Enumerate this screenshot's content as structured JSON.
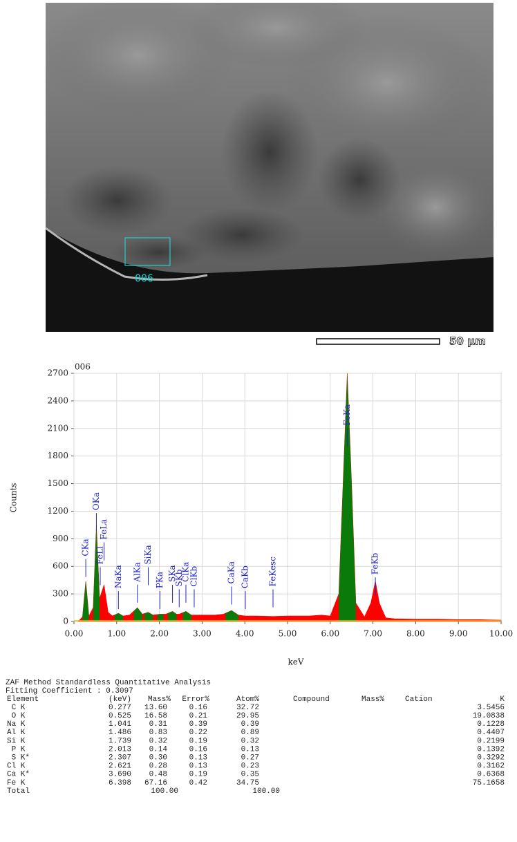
{
  "image": {
    "region_label": "006",
    "scale_label": "50 µm"
  },
  "chart_data": {
    "type": "area",
    "title": "006",
    "x_label": "keV",
    "y_label": "Counts",
    "x": [
      0.1,
      0.2,
      0.277,
      0.35,
      0.45,
      0.525,
      0.6,
      0.705,
      0.8,
      0.9,
      1.041,
      1.15,
      1.3,
      1.486,
      1.6,
      1.739,
      1.85,
      2.013,
      2.15,
      2.307,
      2.4,
      2.464,
      2.621,
      2.75,
      3.0,
      3.3,
      3.5,
      3.69,
      3.85,
      4.012,
      4.3,
      4.66,
      5.0,
      5.5,
      5.8,
      6.0,
      6.2,
      6.3,
      6.398,
      6.5,
      6.6,
      6.8,
      6.95,
      7.057,
      7.15,
      7.3,
      7.5,
      8.0,
      8.5,
      9.0,
      9.5,
      10.0
    ],
    "values": [
      0,
      50,
      440,
      60,
      150,
      1050,
      250,
      400,
      100,
      60,
      90,
      60,
      70,
      150,
      80,
      100,
      70,
      80,
      80,
      110,
      80,
      80,
      110,
      70,
      70,
      70,
      80,
      120,
      70,
      60,
      60,
      55,
      60,
      60,
      70,
      60,
      300,
      1500,
      2700,
      1500,
      200,
      50,
      200,
      440,
      200,
      40,
      30,
      25,
      25,
      20,
      20,
      15
    ],
    "color": "#ff0000",
    "highlight_color": "#0a7a0a",
    "highlight_ranges": [
      [
        0.2,
        0.35
      ],
      [
        0.45,
        0.6
      ],
      [
        0.95,
        1.15
      ],
      [
        1.4,
        1.6
      ],
      [
        1.65,
        1.85
      ],
      [
        1.95,
        2.1
      ],
      [
        2.2,
        2.4
      ],
      [
        2.55,
        2.75
      ],
      [
        3.55,
        3.85
      ],
      [
        6.2,
        6.6
      ]
    ],
    "annotation_color": "#2424c8",
    "annotations": [
      {
        "label": "CKa",
        "x": 0.277,
        "y": 680
      },
      {
        "label": "OKa",
        "x": 0.525,
        "y": 1180
      },
      {
        "label": "FeLl",
        "x": 0.615,
        "y": 590
      },
      {
        "label": "FeLa",
        "x": 0.705,
        "y": 860
      },
      {
        "label": "NaKa",
        "x": 1.041,
        "y": 330
      },
      {
        "label": "AlKa",
        "x": 1.486,
        "y": 400
      },
      {
        "label": "SiKa",
        "x": 1.739,
        "y": 590
      },
      {
        "label": "PKa",
        "x": 2.013,
        "y": 330
      },
      {
        "label": "SKa",
        "x": 2.307,
        "y": 400
      },
      {
        "label": "SKb",
        "x": 2.464,
        "y": 350
      },
      {
        "label": "ClKa",
        "x": 2.621,
        "y": 400
      },
      {
        "label": "ClKb",
        "x": 2.815,
        "y": 350
      },
      {
        "label": "CaKa",
        "x": 3.69,
        "y": 380
      },
      {
        "label": "CaKb",
        "x": 4.012,
        "y": 330
      },
      {
        "label": "FeKesc",
        "x": 4.66,
        "y": 350
      },
      {
        "label": "FeKa",
        "x": 6.398,
        "y": 2100
      },
      {
        "label": "FeKb",
        "x": 7.057,
        "y": 480
      }
    ],
    "xlim": [
      0,
      10
    ],
    "ylim": [
      0,
      2700
    ],
    "xticks": [
      {
        "value": 0,
        "label": "0.00"
      },
      {
        "value": 1,
        "label": "1.00"
      },
      {
        "value": 2,
        "label": "2.00"
      },
      {
        "value": 3,
        "label": "3.00"
      },
      {
        "value": 4,
        "label": "4.00"
      },
      {
        "value": 5,
        "label": "5.00"
      },
      {
        "value": 6,
        "label": "6.00"
      },
      {
        "value": 7,
        "label": "7.00"
      },
      {
        "value": 8,
        "label": "8.00"
      },
      {
        "value": 9,
        "label": "9.00"
      },
      {
        "value": 10,
        "label": "10.00"
      }
    ],
    "yticks": [
      0,
      300,
      600,
      900,
      1200,
      1500,
      1800,
      2100,
      2400,
      2700
    ],
    "grid": true
  },
  "table": {
    "title": "ZAF Method Standardless Quantitative Analysis",
    "fitting": "Fitting Coefficient : 0.3097",
    "header": [
      "Element",
      "(keV)",
      "Mass%",
      "Error%",
      "Atom%",
      "Compound",
      "Mass%",
      "Cation",
      "K"
    ],
    "rows": [
      [
        " C K",
        "0.277",
        "13.60",
        "0.16",
        "32.72",
        "3.5456"
      ],
      [
        " O K",
        "0.525",
        "16.58",
        "0.21",
        "29.95",
        "19.0838"
      ],
      [
        "Na K",
        "1.041",
        "0.31",
        "0.39",
        "0.39",
        "0.1228"
      ],
      [
        "Al K",
        "1.486",
        "0.83",
        "0.22",
        "0.89",
        "0.4407"
      ],
      [
        "Si K",
        "1.739",
        "0.32",
        "0.19",
        "0.32",
        "0.2199"
      ],
      [
        " P K",
        "2.013",
        "0.14",
        "0.16",
        "0.13",
        "0.1392"
      ],
      [
        " S K*",
        "2.307",
        "0.30",
        "0.13",
        "0.27",
        "0.3292"
      ],
      [
        "Cl K",
        "2.621",
        "0.28",
        "0.13",
        "0.23",
        "0.3162"
      ],
      [
        "Ca K*",
        "3.690",
        "0.48",
        "0.19",
        "0.35",
        "0.6368"
      ],
      [
        "Fe K",
        "6.398",
        "67.16",
        "0.42",
        "34.75",
        "75.1658"
      ]
    ],
    "total": {
      "label": "Total",
      "mass": "100.00",
      "atom": "100.00"
    }
  }
}
